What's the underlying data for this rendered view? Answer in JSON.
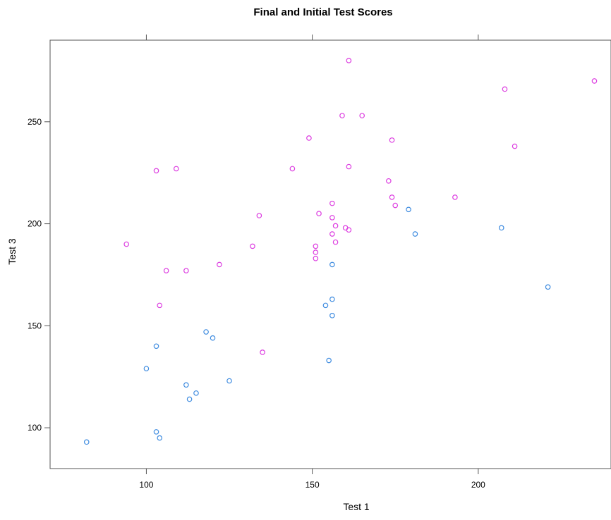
{
  "chart_data": {
    "type": "scatter",
    "title": "Final and Initial Test Scores",
    "xlabel": "Test 1",
    "ylabel": "Test 3",
    "xlim": [
      71,
      240
    ],
    "ylim": [
      80,
      290
    ],
    "xticks": [
      100,
      150,
      200
    ],
    "yticks": [
      100,
      150,
      200,
      250
    ],
    "grid": false,
    "legend": "none",
    "series": [
      {
        "color": "#dc3ce0",
        "points": [
          [
            161,
            280
          ],
          [
            208,
            266
          ],
          [
            235,
            270
          ],
          [
            159,
            253
          ],
          [
            165,
            253
          ],
          [
            149,
            242
          ],
          [
            174,
            241
          ],
          [
            211,
            238
          ],
          [
            103,
            226
          ],
          [
            109,
            227
          ],
          [
            144,
            227
          ],
          [
            161,
            228
          ],
          [
            173,
            221
          ],
          [
            174,
            213
          ],
          [
            193,
            213
          ],
          [
            156,
            210
          ],
          [
            175,
            209
          ],
          [
            152,
            205
          ],
          [
            134,
            204
          ],
          [
            156,
            203
          ],
          [
            157,
            199
          ],
          [
            160,
            198
          ],
          [
            161,
            197
          ],
          [
            156,
            195
          ],
          [
            157,
            191
          ],
          [
            94,
            190
          ],
          [
            132,
            189
          ],
          [
            151,
            189
          ],
          [
            151,
            186
          ],
          [
            151,
            183
          ],
          [
            122,
            180
          ],
          [
            106,
            177
          ],
          [
            112,
            177
          ],
          [
            104,
            160
          ],
          [
            135,
            137
          ]
        ]
      },
      {
        "color": "#3f8ce0",
        "points": [
          [
            179,
            207
          ],
          [
            207,
            198
          ],
          [
            181,
            195
          ],
          [
            156,
            180
          ],
          [
            221,
            169
          ],
          [
            156,
            163
          ],
          [
            154,
            160
          ],
          [
            156,
            155
          ],
          [
            118,
            147
          ],
          [
            120,
            144
          ],
          [
            103,
            140
          ],
          [
            155,
            133
          ],
          [
            100,
            129
          ],
          [
            125,
            123
          ],
          [
            112,
            121
          ],
          [
            115,
            117
          ],
          [
            113,
            114
          ],
          [
            103,
            98
          ],
          [
            104,
            95
          ],
          [
            82,
            93
          ]
        ]
      }
    ]
  }
}
